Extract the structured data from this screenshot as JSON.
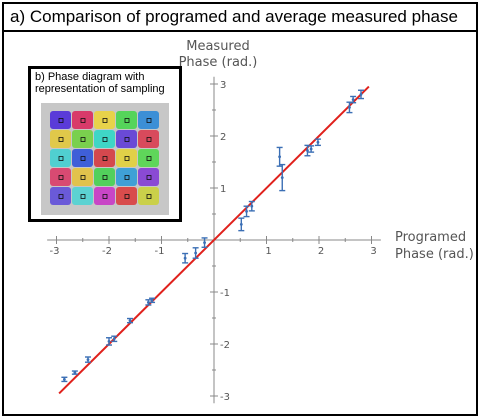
{
  "title": "a) Comparison of programed and average measured phase",
  "inset": {
    "title": "b) Phase diagram with representation of sampling",
    "cell_colors": [
      [
        "#5a3bd8",
        "#d83a6a",
        "#e8d24a",
        "#55d45a",
        "#3c8fd6"
      ],
      [
        "#e0c84a",
        "#7ad04e",
        "#3fd6c6",
        "#6a4ad6",
        "#d84a5c"
      ],
      [
        "#50cfd0",
        "#3f5fd8",
        "#d4484e",
        "#e0d048",
        "#5fd65a"
      ],
      [
        "#d84a72",
        "#e2c24c",
        "#52d05c",
        "#3fa0d6",
        "#8a4ad4"
      ],
      [
        "#6a5ad8",
        "#5cd2d2",
        "#c846c6",
        "#d84c4c",
        "#cad04a"
      ]
    ]
  },
  "chart_data": {
    "type": "scatter",
    "title": "a) Comparison of programed and average measured phase",
    "xlabel": "Programed Phase (rad.)",
    "ylabel": "Measured Phase (rad.)",
    "xlim": [
      -3.14,
      3.14
    ],
    "ylim": [
      -3.14,
      3.14
    ],
    "xticks": [
      -3,
      -2,
      -1,
      1,
      2,
      3
    ],
    "yticks": [
      -3,
      -2,
      -1,
      1,
      2,
      3
    ],
    "grid": false,
    "points": [
      {
        "x": -2.85,
        "y": -2.68,
        "err": 0.04
      },
      {
        "x": -2.65,
        "y": -2.55,
        "err": 0.03
      },
      {
        "x": -2.4,
        "y": -2.3,
        "err": 0.05
      },
      {
        "x": -2.0,
        "y": -1.95,
        "err": 0.07
      },
      {
        "x": -1.9,
        "y": -1.9,
        "err": 0.05
      },
      {
        "x": -1.6,
        "y": -1.55,
        "err": 0.04
      },
      {
        "x": -1.25,
        "y": -1.2,
        "err": 0.05
      },
      {
        "x": -1.18,
        "y": -1.16,
        "err": 0.04
      },
      {
        "x": -0.55,
        "y": -0.35,
        "err": 0.09
      },
      {
        "x": -0.35,
        "y": -0.25,
        "err": 0.1
      },
      {
        "x": -0.18,
        "y": -0.05,
        "err": 0.09
      },
      {
        "x": 0.52,
        "y": 0.3,
        "err": 0.12
      },
      {
        "x": 0.62,
        "y": 0.55,
        "err": 0.1
      },
      {
        "x": 0.72,
        "y": 0.65,
        "err": 0.09
      },
      {
        "x": 1.25,
        "y": 1.6,
        "err": 0.18
      },
      {
        "x": 1.3,
        "y": 1.2,
        "err": 0.25
      },
      {
        "x": 1.78,
        "y": 1.72,
        "err": 0.1
      },
      {
        "x": 1.85,
        "y": 1.75,
        "err": 0.06
      },
      {
        "x": 1.98,
        "y": 1.88,
        "err": 0.06
      },
      {
        "x": 2.58,
        "y": 2.55,
        "err": 0.1
      },
      {
        "x": 2.65,
        "y": 2.7,
        "err": 0.06
      },
      {
        "x": 2.8,
        "y": 2.8,
        "err": 0.08
      }
    ],
    "fit_line": {
      "x": [
        -2.95,
        2.95
      ],
      "y": [
        -2.95,
        2.95
      ],
      "color": "#e0211c"
    },
    "point_color": "#3b6fb5"
  }
}
